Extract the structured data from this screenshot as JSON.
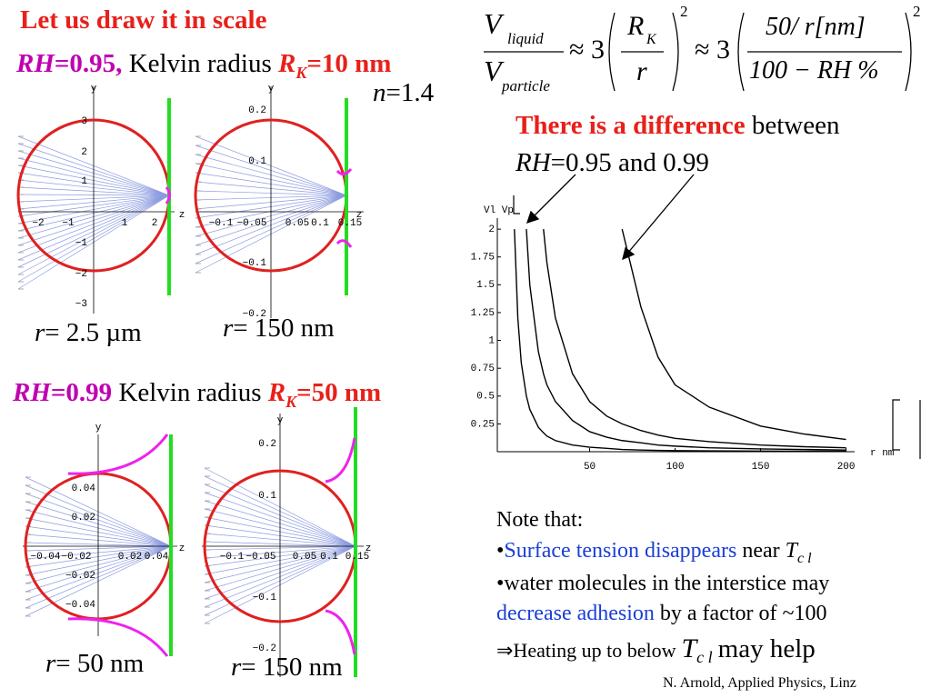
{
  "slide": {
    "heading": "Let us draw it in scale",
    "case1": {
      "rh": "RH",
      "rh_value": "=0.95,",
      "kelvin": "Kelvin radius",
      "rk": "R",
      "rk_sub": "K",
      "rk_value": "=10 nm"
    },
    "refractive_index": {
      "var": "n",
      "rest": "=1.4"
    },
    "case2": {
      "rh": "RH",
      "rh_value": "=0.99",
      "kelvin": "Kelvin radius",
      "rk": "R",
      "rk_sub": "K",
      "rk_value": "=50 nm"
    },
    "formula": {
      "v1": "V",
      "v1_sub": "liquid",
      "v2": "V",
      "v2_sub": "particle",
      "approx1": "≈ 3",
      "rk": "R",
      "rk_sub": "K",
      "r": "r",
      "power1": "2",
      "approx2": "≈ 3",
      "num": "50/ r[nm]",
      "den": "100 − RH %",
      "power2": "2"
    },
    "difference": {
      "highlight": "There is a difference",
      "rest": "between",
      "rh": "RH",
      "line2": "=0.95 and 0.99"
    },
    "panels": [
      {
        "y_label": "y",
        "z_label": "z",
        "y_ticks": [
          "3",
          "2",
          "1",
          "−1",
          "−2",
          "−3"
        ],
        "z_ticks": [
          "−2",
          "−1",
          "1",
          "2"
        ],
        "radius_var": "r",
        "radius_value": "= 2.5 µm"
      },
      {
        "y_label": "y",
        "z_label": "z",
        "y_ticks": [
          "0.2",
          "0.1",
          "−0.1",
          "−0.2"
        ],
        "z_ticks": [
          "−0.1",
          "−0.05",
          "0.05",
          "0.1",
          "0.15"
        ],
        "radius_var": "r",
        "radius_value": "= 150 nm"
      },
      {
        "y_label": "y",
        "z_label": "z",
        "y_ticks": [
          "0.04",
          "0.02",
          "−0.02",
          "−0.04"
        ],
        "z_ticks": [
          "−0.04",
          "−0.02",
          "0.02",
          "0.04"
        ],
        "radius_var": "r",
        "radius_value": "= 50 nm"
      },
      {
        "y_label": "y",
        "z_label": "z",
        "y_ticks": [
          "0.2",
          "0.1",
          "−0.1",
          "−0.2"
        ],
        "z_ticks": [
          "−0.1",
          "−0.05",
          "0.05",
          "0.1",
          "0.15"
        ],
        "radius_var": "r",
        "radius_value": "= 150 nm"
      }
    ],
    "notes": {
      "title": "Note that:",
      "item1": {
        "bullet": "•",
        "highlight": "Surface tension disappears",
        "rest": "near",
        "T": "T",
        "sub": "c l"
      },
      "item2": {
        "line1": "•water molecules in the interstice may",
        "highlight": "decrease adhesion",
        "rest": "by a factor of ~100"
      },
      "item3": {
        "lead": "⇒Heating up to below",
        "T": "T",
        "sub": "c l",
        "rest": "may help"
      }
    },
    "footer": "N. Arnold, Applied Physics, Linz"
  },
  "chart_data": {
    "type": "line",
    "ylabel": "Vl Vp",
    "xlabel": "r nm",
    "x": [
      6,
      8,
      10,
      13,
      15,
      20,
      23,
      25,
      30,
      40,
      50,
      60,
      69,
      80,
      90,
      100,
      120,
      150,
      175,
      200
    ],
    "series": [
      {
        "color": "#000000",
        "values": [
          2,
          1.2,
          0.8,
          0.5,
          0.38,
          0.22,
          0.17,
          0.14,
          0.1,
          0.06,
          0.04,
          0.03,
          0.02,
          0.015,
          0.012,
          0.01,
          0.008,
          0.006,
          0.005,
          0.004
        ]
      },
      {
        "color": "#000000",
        "values": [
          null,
          null,
          null,
          2,
          1.5,
          0.9,
          0.7,
          0.6,
          0.45,
          0.28,
          0.18,
          0.13,
          0.1,
          0.08,
          0.06,
          0.05,
          0.035,
          0.025,
          0.02,
          0.015
        ]
      },
      {
        "color": "#000000",
        "values": [
          null,
          null,
          null,
          null,
          null,
          null,
          2,
          1.7,
          1.2,
          0.7,
          0.45,
          0.32,
          0.25,
          0.19,
          0.15,
          0.12,
          0.09,
          0.06,
          0.045,
          0.035
        ]
      },
      {
        "color": "#000000",
        "values": [
          null,
          null,
          null,
          null,
          null,
          null,
          null,
          null,
          null,
          null,
          null,
          null,
          2,
          1.3,
          0.85,
          0.6,
          0.4,
          0.23,
          0.16,
          0.11
        ]
      }
    ],
    "xlim": [
      -4,
      205
    ],
    "ylim": [
      0,
      2.05
    ],
    "xticks": [
      50,
      100,
      150,
      200
    ],
    "yticks": [
      0.25,
      0.5,
      0.75,
      1,
      1.25,
      1.5,
      1.75,
      2
    ]
  }
}
